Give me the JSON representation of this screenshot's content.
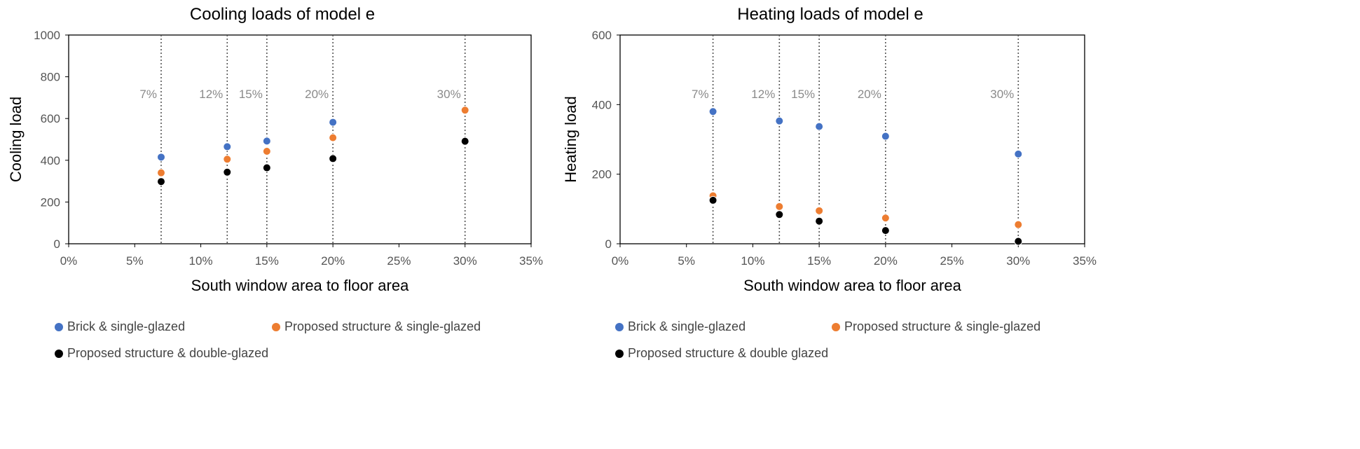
{
  "chart_data": [
    {
      "type": "scatter",
      "title": "Cooling loads of model e",
      "xlabel": "South window area to floor area",
      "ylabel": "Cooling load",
      "xlim": [
        0,
        35
      ],
      "ylim": [
        0,
        1000
      ],
      "x_ticks": [
        "0%",
        "5%",
        "10%",
        "15%",
        "20%",
        "25%",
        "30%",
        "35%"
      ],
      "y_ticks": [
        "0",
        "200",
        "400",
        "600",
        "800",
        "1000"
      ],
      "vlines": [
        {
          "x": 7,
          "label": "7%"
        },
        {
          "x": 12,
          "label": "12%"
        },
        {
          "x": 15,
          "label": "15%"
        },
        {
          "x": 20,
          "label": "20%"
        },
        {
          "x": 30,
          "label": "30%"
        }
      ],
      "x": [
        7,
        12,
        15,
        20,
        30
      ],
      "series": [
        {
          "name": "Brick & single-glazed",
          "color": "#4472c4",
          "values": [
            415,
            465,
            492,
            582,
            638
          ]
        },
        {
          "name": "Proposed structure & single-glazed",
          "color": "#ed7d31",
          "values": [
            340,
            405,
            443,
            508,
            640
          ]
        },
        {
          "name": "Proposed structure & double-glazed",
          "color": "#000000",
          "values": [
            298,
            343,
            364,
            408,
            491
          ]
        }
      ]
    },
    {
      "type": "scatter",
      "title": "Heating loads of model e",
      "xlabel": "South window area to floor area",
      "ylabel": "Heating load",
      "xlim": [
        0,
        35
      ],
      "ylim": [
        0,
        600
      ],
      "x_ticks": [
        "0%",
        "5%",
        "10%",
        "15%",
        "20%",
        "25%",
        "30%",
        "35%"
      ],
      "y_ticks": [
        "0",
        "200",
        "400",
        "600"
      ],
      "vlines": [
        {
          "x": 7,
          "label": "7%"
        },
        {
          "x": 12,
          "label": "12%"
        },
        {
          "x": 15,
          "label": "15%"
        },
        {
          "x": 20,
          "label": "20%"
        },
        {
          "x": 30,
          "label": "30%"
        }
      ],
      "x": [
        7,
        12,
        15,
        20,
        30
      ],
      "series": [
        {
          "name": "Brick & single-glazed",
          "color": "#4472c4",
          "values": [
            380,
            353,
            337,
            309,
            258
          ]
        },
        {
          "name": "Proposed structure & single-glazed",
          "color": "#ed7d31",
          "values": [
            138,
            107,
            95,
            74,
            55
          ]
        },
        {
          "name": "Proposed structure & double glazed",
          "color": "#000000",
          "values": [
            125,
            84,
            65,
            38,
            7
          ]
        }
      ]
    }
  ]
}
